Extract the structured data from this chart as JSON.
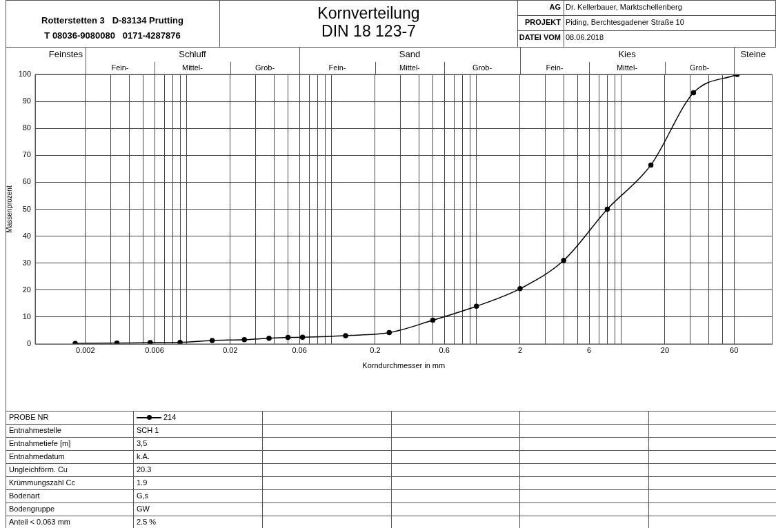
{
  "chart_data": {
    "type": "line",
    "title": "Kornverteilung",
    "subtitle": "DIN 18 123-7",
    "xlabel": "Korndurchmesser in mm",
    "ylabel": "Massenprozent",
    "x": [
      0.0017,
      0.0033,
      0.0056,
      0.009,
      0.015,
      0.025,
      0.037,
      0.05,
      0.063,
      0.125,
      0.25,
      0.5,
      1,
      2,
      4,
      8,
      16,
      31.5,
      63
    ],
    "series": [
      {
        "name": "214",
        "color": "#000000",
        "values": [
          0.2,
          0.3,
          0.5,
          0.6,
          1.3,
          1.6,
          2.1,
          2.4,
          2.5,
          3.1,
          4.2,
          8.8,
          14.0,
          20.5,
          31.0,
          50.0,
          66.4,
          93.2,
          100
        ]
      }
    ],
    "log": "x",
    "xlim": [
      0.0009,
      110
    ],
    "ylim": [
      0,
      100
    ],
    "xticks": [
      0.002,
      {
        "value": 0.003,
        "label": null
      },
      {
        "value": 0.004,
        "label": null
      },
      {
        "value": 0.005,
        "label": null
      },
      0.006,
      {
        "value": 0.007,
        "label": null
      },
      {
        "value": 0.008,
        "label": null
      },
      {
        "value": 0.009,
        "label": null
      },
      {
        "value": 0.01,
        "label": null
      },
      0.02,
      {
        "value": 0.03,
        "label": null
      },
      {
        "value": 0.04,
        "label": null
      },
      {
        "value": 0.05,
        "label": null
      },
      0.06,
      {
        "value": 0.07,
        "label": null
      },
      {
        "value": 0.08,
        "label": null
      },
      {
        "value": 0.09,
        "label": null
      },
      {
        "value": 0.1,
        "label": null
      },
      0.2,
      {
        "value": 0.3,
        "label": null
      },
      {
        "value": 0.4,
        "label": null
      },
      {
        "value": 0.5,
        "label": null
      },
      0.6,
      {
        "value": 0.7,
        "label": null
      },
      {
        "value": 0.8,
        "label": null
      },
      {
        "value": 0.9,
        "label": null
      },
      {
        "value": 1,
        "label": null
      },
      2,
      {
        "value": 3,
        "label": null
      },
      {
        "value": 4,
        "label": null
      },
      {
        "value": 5,
        "label": null
      },
      6,
      {
        "value": 7,
        "label": null
      },
      {
        "value": 8,
        "label": null
      },
      {
        "value": 9,
        "label": null
      },
      {
        "value": 10,
        "label": null
      },
      20,
      {
        "value": 30,
        "label": null
      },
      {
        "value": 40,
        "label": null
      },
      {
        "value": 50,
        "label": null
      },
      60
    ],
    "yticks": [
      0,
      10,
      20,
      30,
      40,
      50,
      60,
      70,
      80,
      90,
      100
    ],
    "grid": true,
    "marker": "circle",
    "line_style": "solid",
    "legend": "bottom",
    "annotations": [
      "Rotterstetten 3   D-83134 Prutting",
      "T 08036-9080080   0171-4287876",
      "AG",
      "Dr. Kellerbauer, Marktschellenberg",
      "PROJEKT",
      "Piding, Berchtesgadener Straße 10",
      "DATEI VOM",
      "08.06.2018",
      "PROBE NR",
      "Entnahmestelle",
      "SCH 1",
      "Entnahmetiefe [m]",
      "3,5",
      "Entnahmedatum",
      "k.A.",
      "Ungleichförm. Cu",
      "20.3",
      "Krümmungszahl Cc",
      "1.9",
      "Bodenart",
      "G,s",
      "Bodengruppe",
      "GW",
      "Anteil < 0.063 mm",
      "2.5 %",
      "Feinstes",
      "Schluff",
      "Fein-",
      "Mittel-",
      "Grob-",
      "Sand",
      "Fein-",
      "Mittel-",
      "Grob-",
      "Kies",
      "Fein-",
      "Mittel-",
      "Grob-",
      "Steine"
    ]
  }
}
